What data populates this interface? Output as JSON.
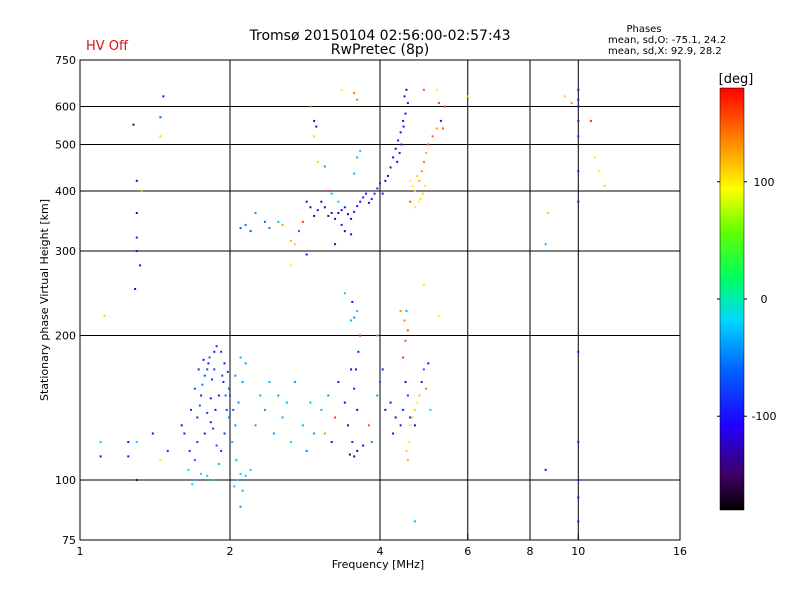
{
  "status_label": "HV Off",
  "title_line1": "Tromsø 20150104 02:56:00-02:57:43",
  "title_line2": "RwPretec (8p)",
  "phases": {
    "heading": "Phases",
    "line_o": "mean, sd,O: -75.1, 24.2",
    "line_x": "mean, sd,X:  92.9, 28.2"
  },
  "colorbar": {
    "unit_label": "[deg]",
    "range": [
      -180,
      180
    ],
    "ticks": [
      {
        "value": 100,
        "label": "100"
      },
      {
        "value": 0,
        "label": "0"
      },
      {
        "value": -100,
        "label": "-100"
      }
    ]
  },
  "chart_data": {
    "type": "scatter",
    "xlabel": "Frequency [MHz]",
    "ylabel": "Stationary phase Virtual Height [km]",
    "x_scale": "log",
    "y_scale": "log",
    "xlim": [
      1,
      16
    ],
    "ylim": [
      75,
      750
    ],
    "x_ticks": [
      {
        "value": 1,
        "label": "1"
      },
      {
        "value": 2,
        "label": "2"
      },
      {
        "value": 4,
        "label": "4"
      },
      {
        "value": 6,
        "label": "6"
      },
      {
        "value": 8,
        "label": "8"
      },
      {
        "value": 10,
        "label": "10"
      },
      {
        "value": 16,
        "label": "16"
      }
    ],
    "y_ticks": [
      {
        "value": 75,
        "label": "75"
      },
      {
        "value": 100,
        "label": "100"
      },
      {
        "value": 200,
        "label": "200"
      },
      {
        "value": 300,
        "label": "300"
      },
      {
        "value": 400,
        "label": "400"
      },
      {
        "value": 500,
        "label": "500"
      },
      {
        "value": 600,
        "label": "600"
      },
      {
        "value": 750,
        "label": "750"
      }
    ],
    "x_gridlines": [
      2,
      4,
      6,
      8,
      10
    ],
    "y_gridlines": [
      100,
      200,
      300,
      400,
      500,
      600
    ],
    "grid": true,
    "color_quantity": "phase [deg]",
    "points": [
      [
        1.25,
        120,
        -100
      ],
      [
        1.25,
        112,
        -100
      ],
      [
        1.3,
        100,
        -150
      ],
      [
        1.3,
        120,
        -20
      ],
      [
        1.28,
        550,
        -150
      ],
      [
        1.3,
        420,
        -130
      ],
      [
        1.33,
        400,
        120
      ],
      [
        1.3,
        300,
        -100
      ],
      [
        1.3,
        320,
        -100
      ],
      [
        1.29,
        250,
        -110
      ],
      [
        1.32,
        280,
        -110
      ],
      [
        1.3,
        360,
        -120
      ],
      [
        1.47,
        630,
        -100
      ],
      [
        1.45,
        570,
        -60
      ],
      [
        1.45,
        520,
        110
      ],
      [
        1.12,
        220,
        110
      ],
      [
        1.1,
        120,
        -20
      ],
      [
        1.1,
        112,
        -120
      ],
      [
        1.4,
        125,
        -110
      ],
      [
        1.5,
        115,
        -90
      ],
      [
        1.45,
        110,
        100
      ],
      [
        1.6,
        130,
        -110
      ],
      [
        1.65,
        105,
        -20
      ],
      [
        1.7,
        100,
        -20
      ],
      [
        1.75,
        103,
        -20
      ],
      [
        1.68,
        98,
        -15
      ],
      [
        1.8,
        102,
        -20
      ],
      [
        1.85,
        100,
        -20
      ],
      [
        1.72,
        120,
        -80
      ],
      [
        1.72,
        135,
        -90
      ],
      [
        1.75,
        150,
        -90
      ],
      [
        1.78,
        165,
        -70
      ],
      [
        1.82,
        180,
        -60
      ],
      [
        1.86,
        185,
        -100
      ],
      [
        1.88,
        190,
        -80
      ],
      [
        1.92,
        185,
        -90
      ],
      [
        1.95,
        175,
        -100
      ],
      [
        1.74,
        143,
        -60
      ],
      [
        1.76,
        158,
        -50
      ],
      [
        1.8,
        170,
        -70
      ],
      [
        1.84,
        162,
        -90
      ],
      [
        1.83,
        148,
        -95
      ],
      [
        1.8,
        138,
        -80
      ],
      [
        1.85,
        128,
        -70
      ],
      [
        1.88,
        118,
        -60
      ],
      [
        1.9,
        108,
        -30
      ],
      [
        1.92,
        115,
        -90
      ],
      [
        1.95,
        125,
        -80
      ],
      [
        1.97,
        140,
        -70
      ],
      [
        1.99,
        155,
        -60
      ],
      [
        1.98,
        168,
        -80
      ],
      [
        1.94,
        160,
        -90
      ],
      [
        1.9,
        150,
        -100
      ],
      [
        1.87,
        140,
        -100
      ],
      [
        1.83,
        132,
        -90
      ],
      [
        1.78,
        125,
        -100
      ],
      [
        1.7,
        110,
        -60
      ],
      [
        1.66,
        115,
        -90
      ],
      [
        1.62,
        125,
        -100
      ],
      [
        1.67,
        140,
        -80
      ],
      [
        1.7,
        155,
        -70
      ],
      [
        1.73,
        170,
        -90
      ],
      [
        1.77,
        178,
        -100
      ],
      [
        1.81,
        175,
        -100
      ],
      [
        1.86,
        170,
        -80
      ],
      [
        1.93,
        165,
        -70
      ],
      [
        1.96,
        150,
        -60
      ],
      [
        1.99,
        135,
        -50
      ],
      [
        2.02,
        120,
        -30
      ],
      [
        2.05,
        130,
        -40
      ],
      [
        2.08,
        145,
        -50
      ],
      [
        2.12,
        160,
        -40
      ],
      [
        2.15,
        175,
        -40
      ],
      [
        2.1,
        180,
        -30
      ],
      [
        2.05,
        165,
        -40
      ],
      [
        2.0,
        150,
        -60
      ],
      [
        2.03,
        140,
        -60
      ],
      [
        2.06,
        110,
        -30
      ],
      [
        2.1,
        103,
        -20
      ],
      [
        2.15,
        102,
        -20
      ],
      [
        2.2,
        105,
        -15
      ],
      [
        2.07,
        100,
        -20
      ],
      [
        2.04,
        97,
        -25
      ],
      [
        2.12,
        95,
        -30
      ],
      [
        2.1,
        88,
        -40
      ],
      [
        2.25,
        130,
        -30
      ],
      [
        2.3,
        150,
        -30
      ],
      [
        2.35,
        140,
        -40
      ],
      [
        2.4,
        160,
        -30
      ],
      [
        2.5,
        150,
        -40
      ],
      [
        2.6,
        145,
        -30
      ],
      [
        2.7,
        160,
        -40
      ],
      [
        2.55,
        135,
        -30
      ],
      [
        2.45,
        125,
        -40
      ],
      [
        2.65,
        120,
        -20
      ],
      [
        2.8,
        130,
        -30
      ],
      [
        2.9,
        145,
        -30
      ],
      [
        2.85,
        115,
        -50
      ],
      [
        2.95,
        125,
        -40
      ],
      [
        3.05,
        140,
        -30
      ],
      [
        3.1,
        125,
        130
      ],
      [
        3.2,
        120,
        -120
      ],
      [
        3.25,
        135,
        160
      ],
      [
        3.15,
        150,
        -40
      ],
      [
        3.3,
        160,
        -110
      ],
      [
        3.4,
        145,
        -120
      ],
      [
        3.45,
        130,
        -130
      ],
      [
        3.5,
        170,
        -110
      ],
      [
        3.55,
        155,
        -100
      ],
      [
        3.6,
        140,
        -110
      ],
      [
        3.52,
        120,
        -90
      ],
      [
        3.48,
        113,
        -150
      ],
      [
        3.55,
        112,
        -140
      ],
      [
        3.6,
        115,
        -130
      ],
      [
        3.7,
        118,
        -120
      ],
      [
        3.62,
        185,
        -100
      ],
      [
        3.58,
        170,
        -110
      ],
      [
        3.65,
        200,
        170
      ],
      [
        3.5,
        215,
        -30
      ],
      [
        3.55,
        218,
        -40
      ],
      [
        3.6,
        225,
        -20
      ],
      [
        3.52,
        235,
        -110
      ],
      [
        3.4,
        245,
        -20
      ],
      [
        3.8,
        130,
        150
      ],
      [
        3.85,
        120,
        -40
      ],
      [
        3.95,
        150,
        -40
      ],
      [
        4.0,
        160,
        -60
      ],
      [
        4.05,
        170,
        -100
      ],
      [
        4.1,
        140,
        -120
      ],
      [
        4.2,
        145,
        -120
      ],
      [
        4.3,
        135,
        -130
      ],
      [
        4.25,
        125,
        -110
      ],
      [
        4.4,
        130,
        -100
      ],
      [
        4.45,
        140,
        -90
      ],
      [
        4.5,
        160,
        -110
      ],
      [
        4.55,
        150,
        -80
      ],
      [
        4.6,
        130,
        80
      ],
      [
        4.65,
        135,
        100
      ],
      [
        4.7,
        140,
        110
      ],
      [
        4.75,
        145,
        90
      ],
      [
        4.8,
        150,
        120
      ],
      [
        4.85,
        160,
        -100
      ],
      [
        4.9,
        170,
        -60
      ],
      [
        4.95,
        155,
        140
      ],
      [
        5.0,
        175,
        -110
      ],
      [
        4.58,
        120,
        100
      ],
      [
        4.52,
        115,
        110
      ],
      [
        4.55,
        110,
        120
      ],
      [
        4.45,
        180,
        160
      ],
      [
        4.5,
        195,
        150
      ],
      [
        4.55,
        205,
        150
      ],
      [
        4.48,
        215,
        140
      ],
      [
        4.52,
        225,
        -30
      ],
      [
        4.4,
        225,
        130
      ],
      [
        4.9,
        255,
        100
      ],
      [
        4.6,
        135,
        -100
      ],
      [
        4.7,
        130,
        -110
      ],
      [
        5.05,
        140,
        -20
      ],
      [
        3.95,
        200,
        -20
      ],
      [
        4.7,
        82,
        -30
      ],
      [
        2.1,
        335,
        -60
      ],
      [
        2.15,
        340,
        -50
      ],
      [
        2.2,
        330,
        -70
      ],
      [
        2.25,
        360,
        -40
      ],
      [
        2.35,
        345,
        -60
      ],
      [
        2.4,
        335,
        -50
      ],
      [
        2.5,
        345,
        -30
      ],
      [
        2.55,
        340,
        130
      ],
      [
        2.65,
        315,
        120
      ],
      [
        2.7,
        310,
        110
      ],
      [
        2.75,
        330,
        -60
      ],
      [
        2.8,
        345,
        160
      ],
      [
        2.85,
        380,
        -120
      ],
      [
        2.9,
        370,
        -150
      ],
      [
        2.95,
        355,
        -130
      ],
      [
        3.0,
        365,
        -110
      ],
      [
        3.05,
        380,
        -120
      ],
      [
        3.1,
        370,
        -130
      ],
      [
        3.15,
        355,
        -150
      ],
      [
        3.2,
        360,
        -140
      ],
      [
        3.25,
        350,
        -120
      ],
      [
        3.3,
        360,
        -130
      ],
      [
        3.35,
        365,
        -110
      ],
      [
        3.4,
        370,
        -100
      ],
      [
        3.45,
        358,
        -120
      ],
      [
        3.5,
        350,
        -130
      ],
      [
        3.55,
        362,
        -110
      ],
      [
        3.6,
        372,
        -100
      ],
      [
        3.65,
        380,
        -100
      ],
      [
        3.7,
        388,
        -90
      ],
      [
        3.75,
        395,
        -100
      ],
      [
        3.8,
        378,
        -110
      ],
      [
        3.85,
        385,
        -100
      ],
      [
        3.9,
        395,
        -90
      ],
      [
        3.95,
        405,
        -80
      ],
      [
        4.0,
        415,
        -90
      ],
      [
        4.05,
        395,
        -100
      ],
      [
        4.1,
        420,
        -120
      ],
      [
        4.15,
        430,
        -110
      ],
      [
        4.2,
        448,
        -100
      ],
      [
        4.25,
        470,
        -110
      ],
      [
        4.3,
        490,
        -120
      ],
      [
        4.35,
        510,
        -100
      ],
      [
        4.4,
        530,
        -110
      ],
      [
        4.45,
        560,
        -120
      ],
      [
        4.5,
        580,
        -110
      ],
      [
        4.55,
        610,
        -100
      ],
      [
        4.48,
        630,
        -100
      ],
      [
        4.52,
        650,
        -110
      ],
      [
        4.42,
        500,
        -90
      ],
      [
        4.38,
        480,
        -90
      ],
      [
        4.33,
        460,
        -100
      ],
      [
        4.46,
        545,
        -100
      ],
      [
        4.6,
        420,
        90
      ],
      [
        4.65,
        410,
        100
      ],
      [
        4.7,
        400,
        110
      ],
      [
        4.75,
        430,
        110
      ],
      [
        4.8,
        420,
        120
      ],
      [
        4.85,
        440,
        130
      ],
      [
        4.9,
        460,
        140
      ],
      [
        4.95,
        480,
        120
      ],
      [
        5.0,
        500,
        150
      ],
      [
        5.1,
        520,
        150
      ],
      [
        5.2,
        540,
        130
      ],
      [
        4.82,
        385,
        100
      ],
      [
        4.88,
        395,
        110
      ],
      [
        4.92,
        410,
        100
      ],
      [
        4.78,
        380,
        90
      ],
      [
        4.7,
        370,
        100
      ],
      [
        4.6,
        380,
        150
      ],
      [
        3.4,
        330,
        -130
      ],
      [
        3.5,
        325,
        -120
      ],
      [
        3.35,
        340,
        -100
      ],
      [
        3.3,
        380,
        -20
      ],
      [
        3.2,
        395,
        -30
      ],
      [
        3.15,
        400,
        160
      ],
      [
        3.55,
        435,
        -30
      ],
      [
        3.65,
        485,
        -20
      ],
      [
        3.6,
        470,
        -30
      ],
      [
        3.1,
        450,
        -40
      ],
      [
        3.0,
        460,
        110
      ],
      [
        2.95,
        520,
        110
      ],
      [
        2.9,
        600,
        140
      ],
      [
        2.95,
        560,
        -110
      ],
      [
        2.98,
        545,
        -110
      ],
      [
        3.35,
        650,
        100
      ],
      [
        3.55,
        640,
        140
      ],
      [
        3.6,
        620,
        140
      ],
      [
        5.4,
        600,
        160
      ],
      [
        5.25,
        610,
        160
      ],
      [
        5.3,
        560,
        -100
      ],
      [
        5.35,
        540,
        150
      ],
      [
        4.9,
        650,
        150
      ],
      [
        5.2,
        650,
        100
      ],
      [
        3.25,
        310,
        -130
      ],
      [
        2.85,
        295,
        -110
      ],
      [
        2.65,
        280,
        100
      ],
      [
        5.25,
        220,
        100
      ],
      [
        6.0,
        630,
        70
      ],
      [
        9.4,
        630,
        110
      ],
      [
        9.7,
        610,
        130
      ],
      [
        10.0,
        650,
        -110
      ],
      [
        10.0,
        620,
        -100
      ],
      [
        10.0,
        600,
        -110
      ],
      [
        10.0,
        560,
        -100
      ],
      [
        10.0,
        520,
        -90
      ],
      [
        10.0,
        440,
        -100
      ],
      [
        10.0,
        380,
        -110
      ],
      [
        10.0,
        185,
        -100
      ],
      [
        10.0,
        100,
        -110
      ],
      [
        10.0,
        92,
        -120
      ],
      [
        10.0,
        82,
        -110
      ],
      [
        10.0,
        120,
        -100
      ],
      [
        10.6,
        560,
        170
      ],
      [
        10.8,
        470,
        100
      ],
      [
        11.0,
        440,
        90
      ],
      [
        11.3,
        410,
        110
      ],
      [
        8.7,
        360,
        110
      ],
      [
        8.6,
        310,
        -30
      ],
      [
        8.6,
        105,
        -120
      ]
    ]
  }
}
